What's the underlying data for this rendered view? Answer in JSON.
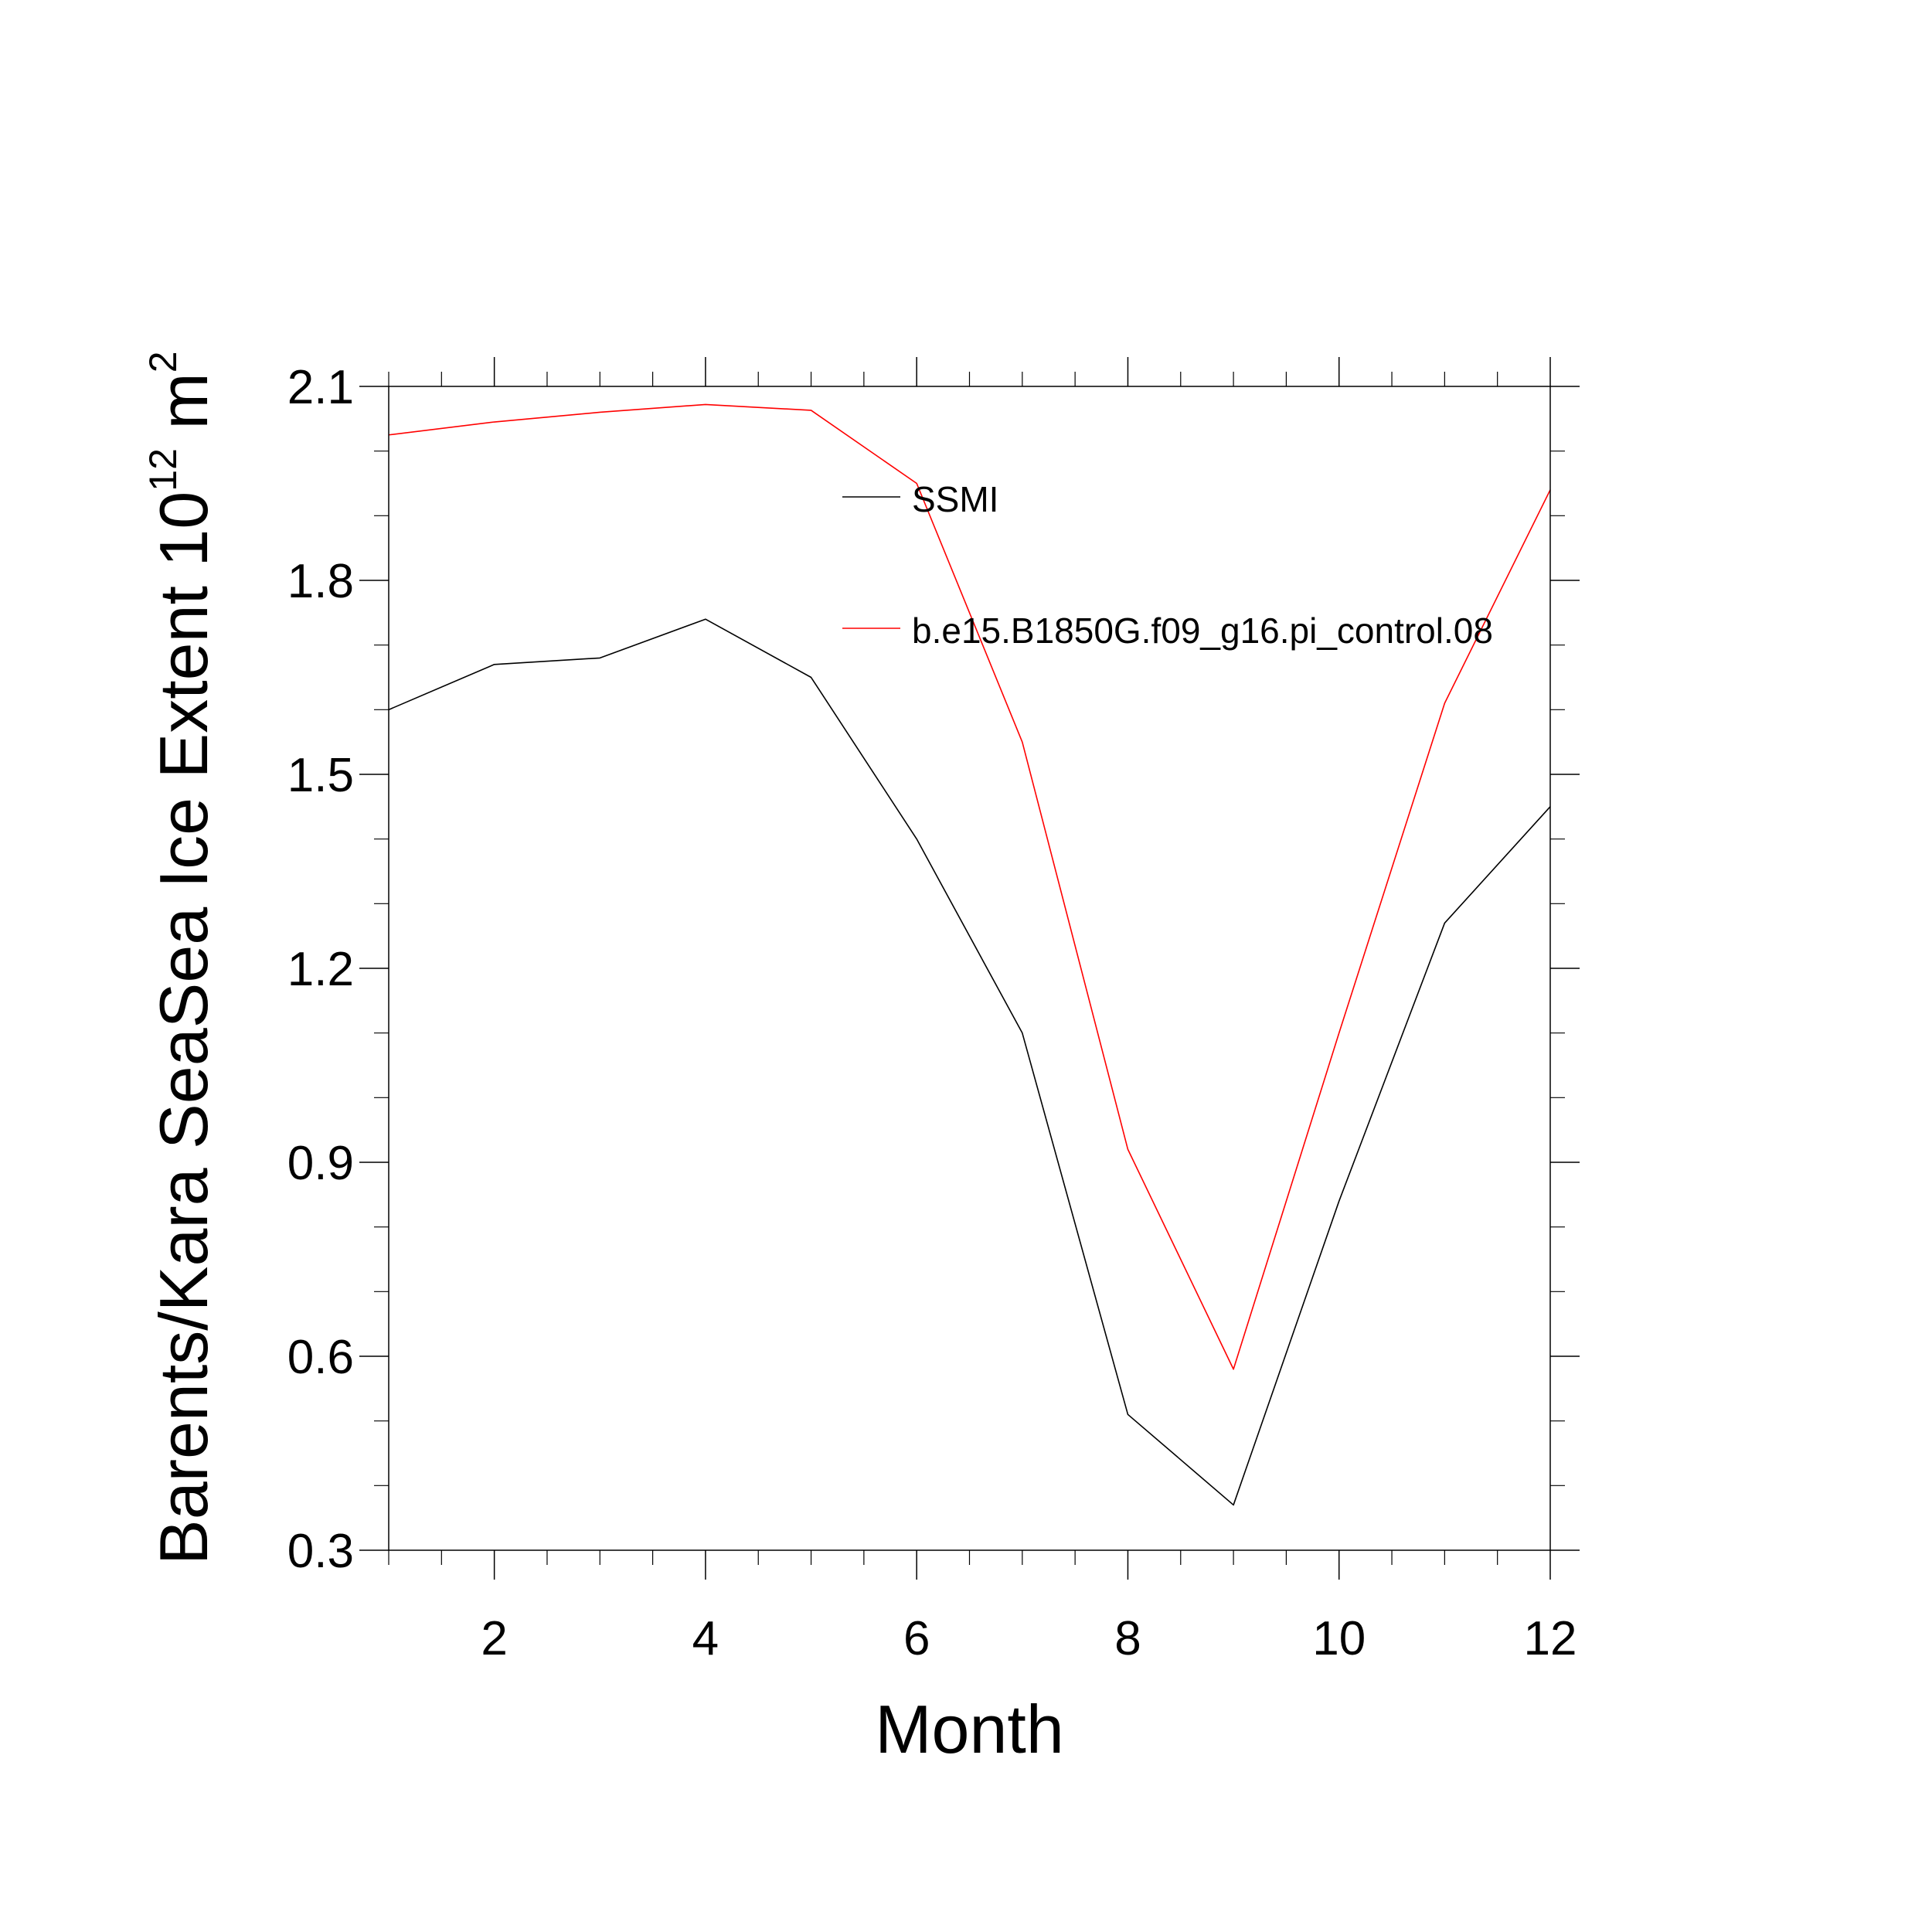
{
  "chart_data": {
    "type": "line",
    "xlabel": "Month",
    "ylabel": {
      "text": "Barents/Kara SeaSea Ice Extent 10",
      "exponent": "12",
      "unit": " m",
      "unit_exponent": "2"
    },
    "xlim": [
      1,
      12
    ],
    "ylim": [
      0.3,
      2.1
    ],
    "x_ticks": [
      2,
      4,
      6,
      8,
      10,
      12
    ],
    "x_minor_step": 0.5,
    "y_ticks": [
      0.3,
      0.6,
      0.9,
      1.2,
      1.5,
      1.8,
      2.1
    ],
    "y_minor_step": 0.1,
    "grid": false,
    "legend_position": "top-right",
    "x": [
      1,
      2,
      3,
      4,
      5,
      6,
      7,
      8,
      9,
      10,
      11,
      12
    ],
    "series": [
      {
        "name": "SSMI",
        "color": "#000000",
        "values": [
          1.6,
          1.67,
          1.68,
          1.74,
          1.65,
          1.4,
          1.1,
          0.51,
          0.37,
          0.84,
          1.27,
          1.45
        ]
      },
      {
        "name": "b.e15.B1850G.f09_g16.pi_control.08",
        "color": "#ff0000",
        "values": [
          2.025,
          2.045,
          2.06,
          2.072,
          2.063,
          1.95,
          1.55,
          0.92,
          0.58,
          1.1,
          1.61,
          1.94
        ]
      }
    ]
  }
}
